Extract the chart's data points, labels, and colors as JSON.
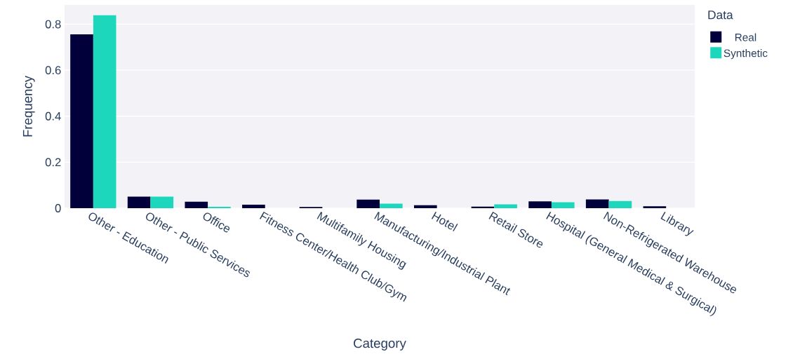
{
  "chart_data": {
    "type": "bar",
    "xlabel": "Category",
    "ylabel": "Frequency",
    "legend_title": "Data",
    "categories": [
      "Other - Education",
      "Other - Public Services",
      "Office",
      "Fitness Center/Health Club/Gym",
      "Multifamily Housing",
      "Manufacturing/Industrial Plant",
      "Hotel",
      "Retail Store",
      "Hospital (General Medical & Surgical)",
      "Non-Refrigerated Warehouse",
      "Library"
    ],
    "series": [
      {
        "name": "Real",
        "color": "#02003a",
        "values": [
          0.756,
          0.05,
          0.028,
          0.015,
          0.005,
          0.037,
          0.013,
          0.007,
          0.03,
          0.038,
          0.008
        ]
      },
      {
        "name": "Synthetic",
        "color": "#1dd7bd",
        "values": [
          0.84,
          0.05,
          0.006,
          0,
          0,
          0.02,
          0,
          0.017,
          0.026,
          0.031,
          0
        ]
      }
    ],
    "ylim": [
      0,
      0.884
    ],
    "yticks": [
      0,
      0.2,
      0.4,
      0.6,
      0.8
    ],
    "grid": "y",
    "legend": "top right"
  }
}
